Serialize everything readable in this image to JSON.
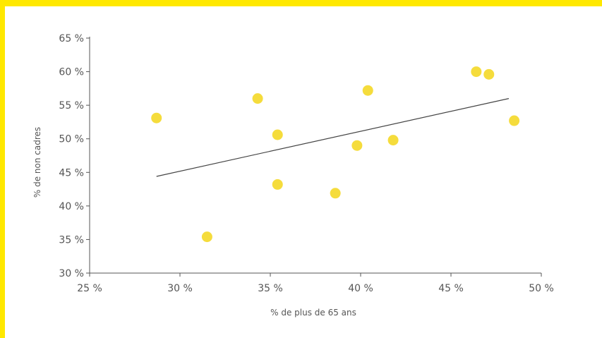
{
  "chart_data": {
    "type": "scatter",
    "title": "",
    "xlabel": "% de plus de 65 ans",
    "ylabel": "% de non cadres",
    "xlim": [
      25,
      50
    ],
    "ylim": [
      30,
      65
    ],
    "x_ticks": [
      25,
      30,
      35,
      40,
      45,
      50
    ],
    "y_ticks": [
      30,
      35,
      40,
      45,
      50,
      55,
      60,
      65
    ],
    "x_tick_labels": [
      "25 %",
      "30 %",
      "35 %",
      "40 %",
      "45 %",
      "50 %"
    ],
    "y_tick_labels": [
      "30 %",
      "35 %",
      "40 %",
      "45 %",
      "50 %",
      "55 %",
      "60 %",
      "65 %"
    ],
    "grid": false,
    "legend": "none",
    "point_color": "#f5dc3c",
    "trendline_color": "#444444",
    "frame_color": "#ffe800",
    "series": [
      {
        "points": [
          {
            "x": 28.7,
            "y": 53.1
          },
          {
            "x": 31.5,
            "y": 35.4
          },
          {
            "x": 34.3,
            "y": 56.0
          },
          {
            "x": 35.4,
            "y": 50.6
          },
          {
            "x": 35.4,
            "y": 43.2
          },
          {
            "x": 38.6,
            "y": 41.9
          },
          {
            "x": 39.8,
            "y": 49.0
          },
          {
            "x": 40.4,
            "y": 57.2
          },
          {
            "x": 41.8,
            "y": 49.8
          },
          {
            "x": 46.4,
            "y": 60.0
          },
          {
            "x": 47.1,
            "y": 59.6
          },
          {
            "x": 48.5,
            "y": 52.7
          }
        ]
      }
    ],
    "trendline": {
      "x": [
        28.7,
        48.2
      ],
      "y": [
        44.4,
        56.0
      ]
    }
  }
}
